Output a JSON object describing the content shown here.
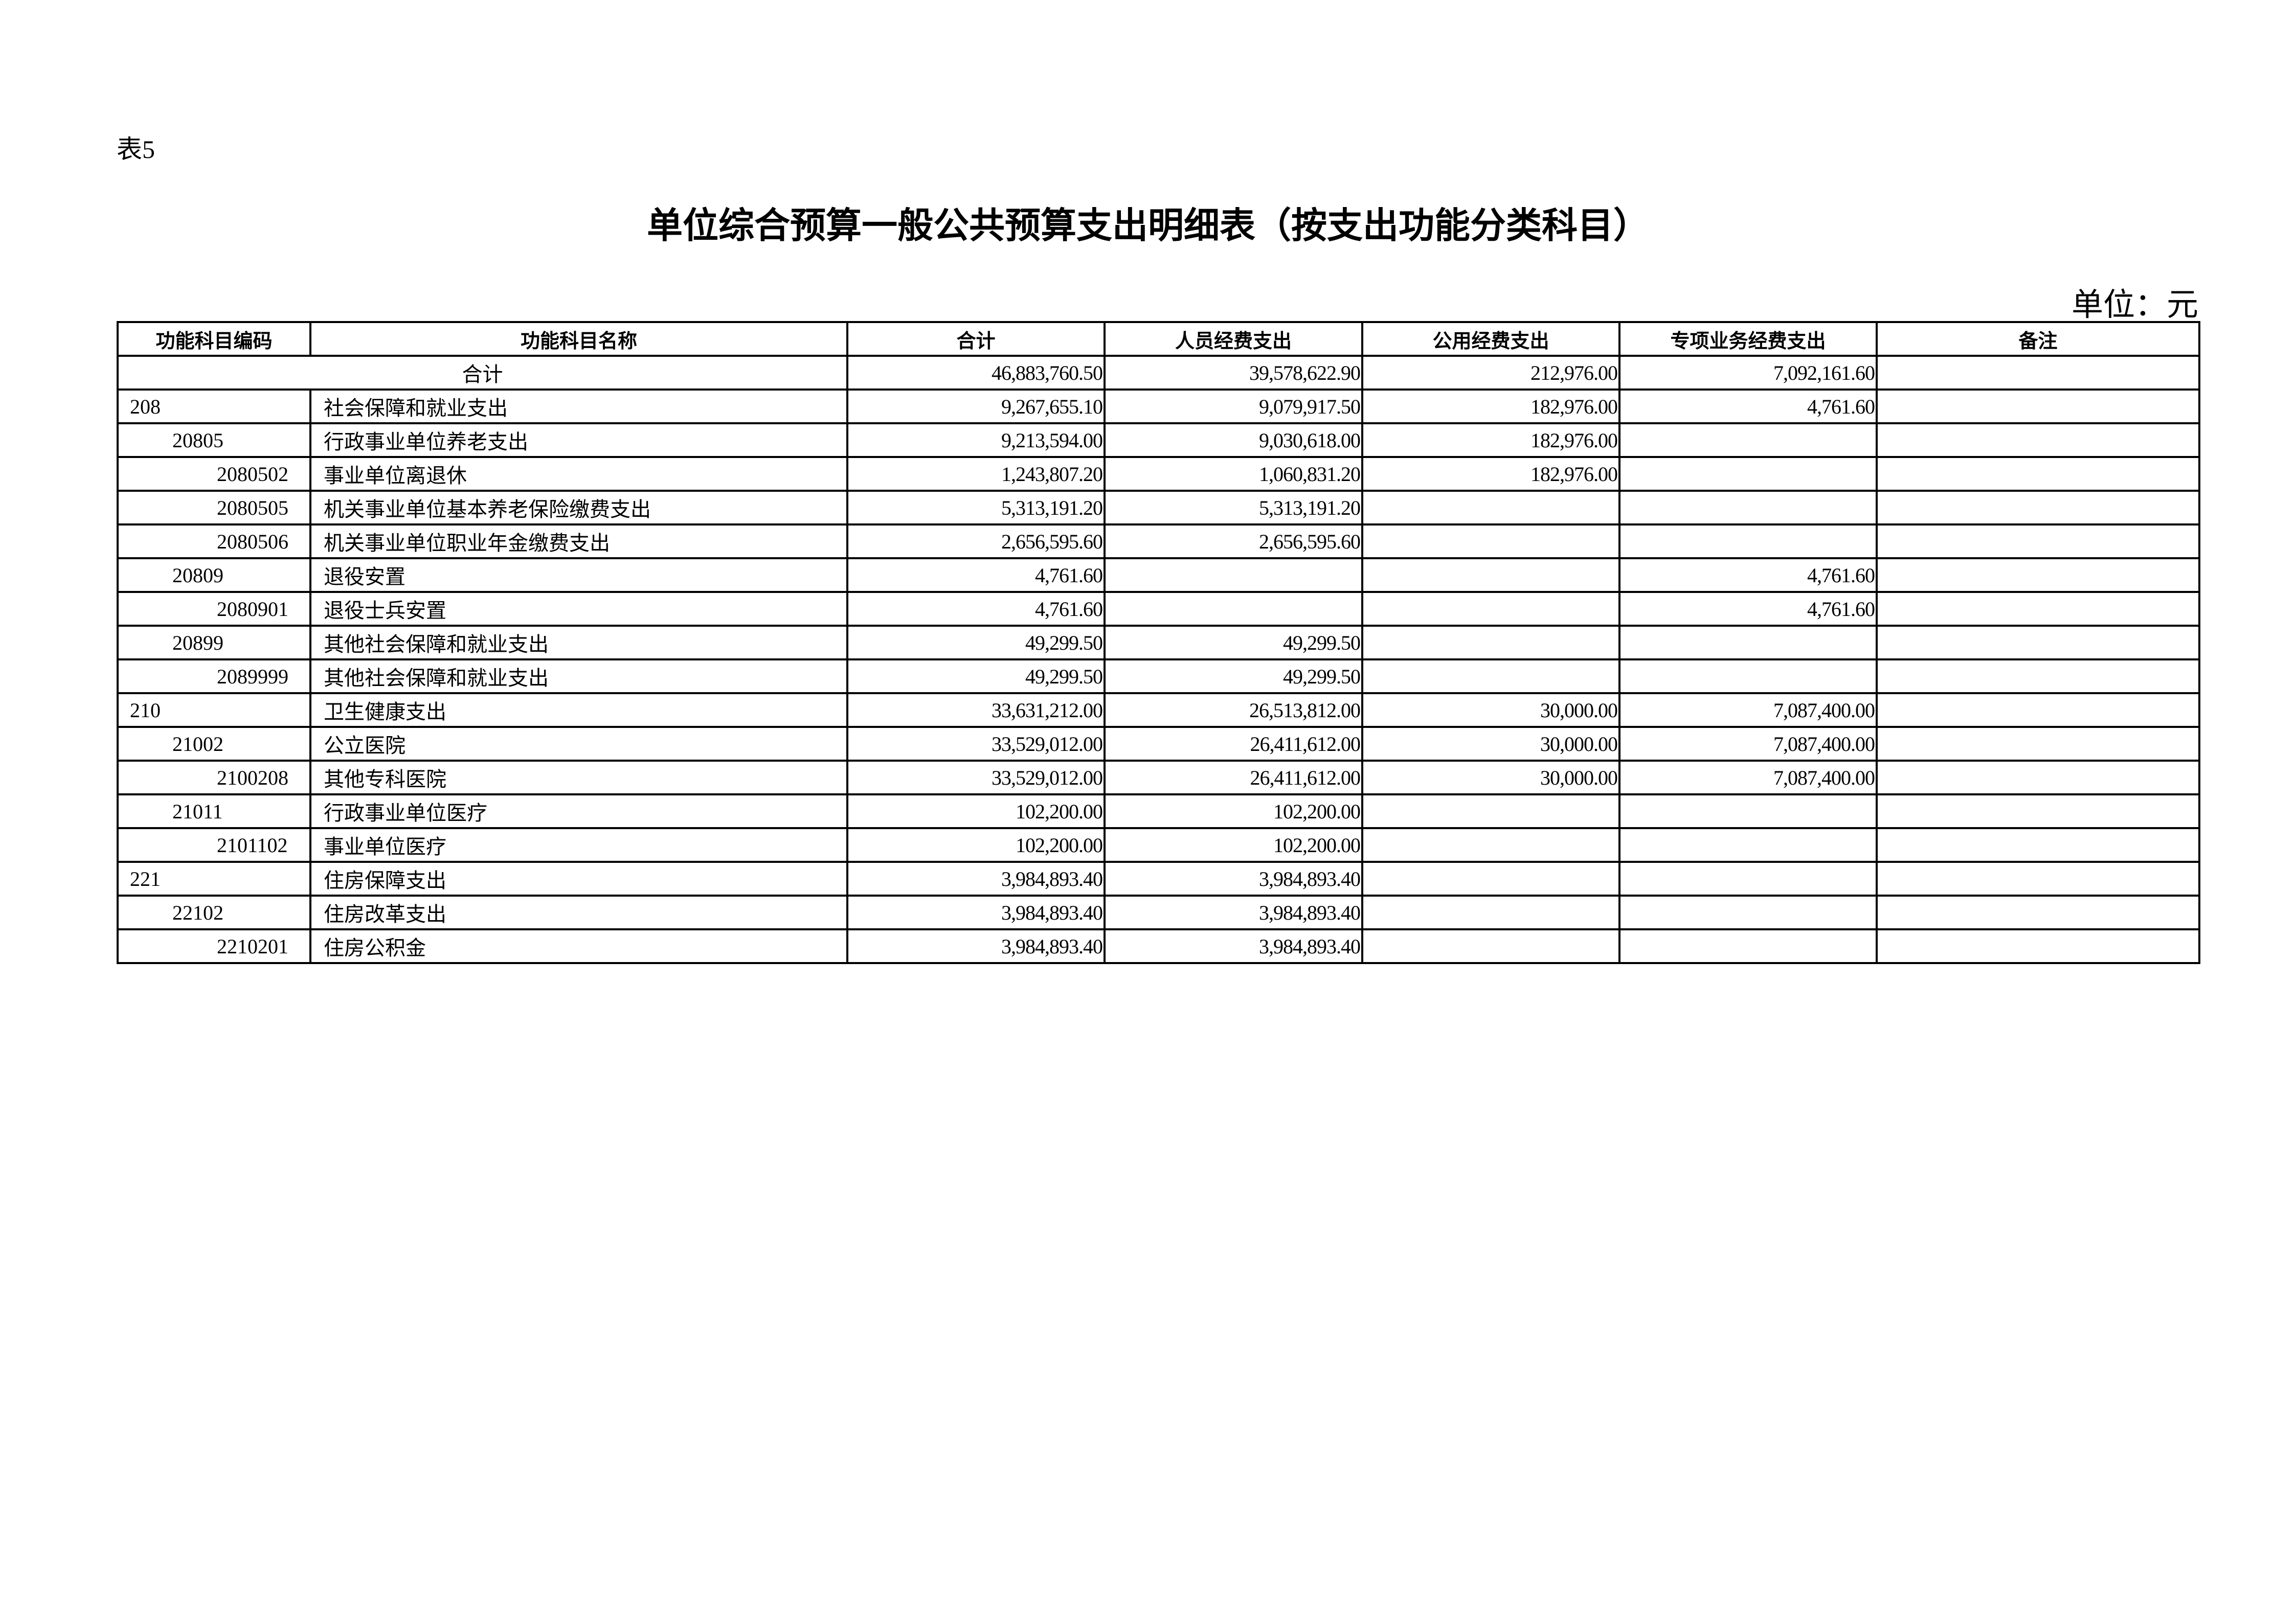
{
  "table_no": "表5",
  "title": "单位综合预算一般公共预算支出明细表（按支出功能分类科目）",
  "unit": "单位：元",
  "headers": [
    "功能科目编码",
    "功能科目名称",
    "合计",
    "人员经费支出",
    "公用经费支出",
    "专项业务经费支出",
    "备注"
  ],
  "total_row": {
    "label": "合计",
    "total": "46,883,760.50",
    "personnel": "39,578,622.90",
    "public": "212,976.00",
    "special": "7,092,161.60",
    "remark": ""
  },
  "rows": [
    {
      "level": 1,
      "code": "208",
      "name": "社会保障和就业支出",
      "total": "9,267,655.10",
      "personnel": "9,079,917.50",
      "public": "182,976.00",
      "special": "4,761.60",
      "remark": ""
    },
    {
      "level": 2,
      "code": "20805",
      "name": "行政事业单位养老支出",
      "total": "9,213,594.00",
      "personnel": "9,030,618.00",
      "public": "182,976.00",
      "special": "",
      "remark": ""
    },
    {
      "level": 3,
      "code": "2080502",
      "name": "事业单位离退休",
      "total": "1,243,807.20",
      "personnel": "1,060,831.20",
      "public": "182,976.00",
      "special": "",
      "remark": ""
    },
    {
      "level": 3,
      "code": "2080505",
      "name": "机关事业单位基本养老保险缴费支出",
      "total": "5,313,191.20",
      "personnel": "5,313,191.20",
      "public": "",
      "special": "",
      "remark": ""
    },
    {
      "level": 3,
      "code": "2080506",
      "name": "机关事业单位职业年金缴费支出",
      "total": "2,656,595.60",
      "personnel": "2,656,595.60",
      "public": "",
      "special": "",
      "remark": ""
    },
    {
      "level": 2,
      "code": "20809",
      "name": "退役安置",
      "total": "4,761.60",
      "personnel": "",
      "public": "",
      "special": "4,761.60",
      "remark": ""
    },
    {
      "level": 3,
      "code": "2080901",
      "name": "退役士兵安置",
      "total": "4,761.60",
      "personnel": "",
      "public": "",
      "special": "4,761.60",
      "remark": ""
    },
    {
      "level": 2,
      "code": "20899",
      "name": "其他社会保障和就业支出",
      "total": "49,299.50",
      "personnel": "49,299.50",
      "public": "",
      "special": "",
      "remark": ""
    },
    {
      "level": 3,
      "code": "2089999",
      "name": "其他社会保障和就业支出",
      "total": "49,299.50",
      "personnel": "49,299.50",
      "public": "",
      "special": "",
      "remark": ""
    },
    {
      "level": 1,
      "code": "210",
      "name": "卫生健康支出",
      "total": "33,631,212.00",
      "personnel": "26,513,812.00",
      "public": "30,000.00",
      "special": "7,087,400.00",
      "remark": ""
    },
    {
      "level": 2,
      "code": "21002",
      "name": "公立医院",
      "total": "33,529,012.00",
      "personnel": "26,411,612.00",
      "public": "30,000.00",
      "special": "7,087,400.00",
      "remark": ""
    },
    {
      "level": 3,
      "code": "2100208",
      "name": "其他专科医院",
      "total": "33,529,012.00",
      "personnel": "26,411,612.00",
      "public": "30,000.00",
      "special": "7,087,400.00",
      "remark": ""
    },
    {
      "level": 2,
      "code": "21011",
      "name": "行政事业单位医疗",
      "total": "102,200.00",
      "personnel": "102,200.00",
      "public": "",
      "special": "",
      "remark": ""
    },
    {
      "level": 3,
      "code": "2101102",
      "name": "事业单位医疗",
      "total": "102,200.00",
      "personnel": "102,200.00",
      "public": "",
      "special": "",
      "remark": ""
    },
    {
      "level": 1,
      "code": "221",
      "name": "住房保障支出",
      "total": "3,984,893.40",
      "personnel": "3,984,893.40",
      "public": "",
      "special": "",
      "remark": ""
    },
    {
      "level": 2,
      "code": "22102",
      "name": "住房改革支出",
      "total": "3,984,893.40",
      "personnel": "3,984,893.40",
      "public": "",
      "special": "",
      "remark": ""
    },
    {
      "level": 3,
      "code": "2210201",
      "name": "住房公积金",
      "total": "3,984,893.40",
      "personnel": "3,984,893.40",
      "public": "",
      "special": "",
      "remark": ""
    }
  ]
}
